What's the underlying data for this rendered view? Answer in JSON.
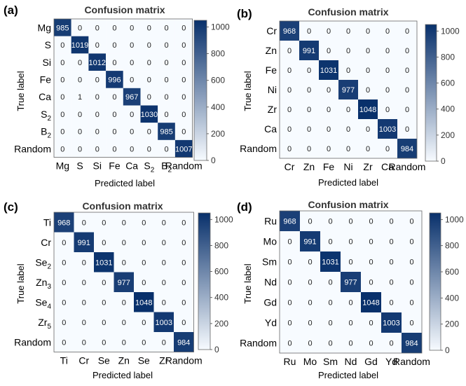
{
  "chart_data": [
    {
      "type": "heatmap",
      "panel_label": "(a)",
      "title": "Confusion matrix",
      "xlabel": "Predicted label",
      "ylabel": "True label",
      "row_labels": [
        "Mg",
        "S",
        "Si",
        "Fe",
        "Ca",
        "S2",
        "B2",
        "Random"
      ],
      "col_labels": [
        "Mg",
        "S",
        "Si",
        "Fe",
        "Ca",
        "S2",
        "B2",
        "Random"
      ],
      "values": [
        [
          985,
          0,
          0,
          0,
          0,
          0,
          0,
          0
        ],
        [
          0,
          1019,
          0,
          0,
          0,
          0,
          0,
          0
        ],
        [
          0,
          0,
          1012,
          0,
          0,
          0,
          0,
          0
        ],
        [
          0,
          0,
          0,
          996,
          0,
          0,
          0,
          0
        ],
        [
          0,
          1,
          0,
          0,
          967,
          0,
          0,
          0
        ],
        [
          0,
          0,
          0,
          0,
          0,
          1030,
          0,
          0
        ],
        [
          0,
          0,
          0,
          0,
          0,
          0,
          985,
          0
        ],
        [
          0,
          0,
          0,
          0,
          0,
          0,
          0,
          1007
        ]
      ],
      "colorbar_ticks": [
        0,
        200,
        400,
        600,
        800,
        1000
      ],
      "color_range": [
        0,
        1050
      ],
      "colormap": [
        "#f7fbff",
        "#08306b"
      ]
    },
    {
      "type": "heatmap",
      "panel_label": "(b)",
      "title": "Confusion matrix",
      "xlabel": "Predicted label",
      "ylabel": "True label",
      "row_labels": [
        "Cr",
        "Zn",
        "Fe",
        "Ni",
        "Zr",
        "Ca",
        "Random"
      ],
      "col_labels": [
        "Cr",
        "Zn",
        "Fe",
        "Ni",
        "Zr",
        "Ca",
        "Random"
      ],
      "values": [
        [
          968,
          0,
          0,
          0,
          0,
          0,
          0
        ],
        [
          0,
          991,
          0,
          0,
          0,
          0,
          0
        ],
        [
          0,
          0,
          1031,
          0,
          0,
          0,
          0
        ],
        [
          0,
          0,
          0,
          977,
          0,
          0,
          0
        ],
        [
          0,
          0,
          0,
          0,
          1048,
          0,
          0
        ],
        [
          0,
          0,
          0,
          0,
          0,
          1003,
          0
        ],
        [
          0,
          0,
          0,
          0,
          0,
          0,
          984
        ]
      ],
      "colorbar_ticks": [
        0,
        200,
        400,
        600,
        800,
        1000
      ],
      "color_range": [
        0,
        1050
      ],
      "colormap": [
        "#f7fbff",
        "#08306b"
      ]
    },
    {
      "type": "heatmap",
      "panel_label": "(c)",
      "title": "Confusion matrix",
      "xlabel": "Predicted label",
      "ylabel": "True label",
      "row_labels": [
        "Ti",
        "Cr",
        "Se2",
        "Zn3",
        "Se4",
        "Zr5",
        "Random"
      ],
      "col_labels": [
        "Ti",
        "Cr",
        "Se",
        "Zn",
        "Se",
        "Zr",
        "Random"
      ],
      "values": [
        [
          968,
          0,
          0,
          0,
          0,
          0,
          0
        ],
        [
          0,
          991,
          0,
          0,
          0,
          0,
          0
        ],
        [
          0,
          0,
          1031,
          0,
          0,
          0,
          0
        ],
        [
          0,
          0,
          0,
          977,
          0,
          0,
          0
        ],
        [
          0,
          0,
          0,
          0,
          1048,
          0,
          0
        ],
        [
          0,
          0,
          0,
          0,
          0,
          1003,
          0
        ],
        [
          0,
          0,
          0,
          0,
          0,
          0,
          984
        ]
      ],
      "colorbar_ticks": [
        0,
        200,
        400,
        600,
        800,
        1000
      ],
      "color_range": [
        0,
        1050
      ],
      "colormap": [
        "#f7fbff",
        "#08306b"
      ]
    },
    {
      "type": "heatmap",
      "panel_label": "(d)",
      "title": "Confusion matrix",
      "xlabel": "Predicted label",
      "ylabel": "True label",
      "row_labels": [
        "Ru",
        "Mo",
        "Sm",
        "Nd",
        "Gd",
        "Yd",
        "Random"
      ],
      "col_labels": [
        "Ru",
        "Mo",
        "Sm",
        "Nd",
        "Gd",
        "Yd",
        "Random"
      ],
      "values": [
        [
          968,
          0,
          0,
          0,
          0,
          0,
          0
        ],
        [
          0,
          991,
          0,
          0,
          0,
          0,
          0
        ],
        [
          0,
          0,
          1031,
          0,
          0,
          0,
          0
        ],
        [
          0,
          0,
          0,
          977,
          0,
          0,
          0
        ],
        [
          0,
          0,
          0,
          0,
          1048,
          0,
          0
        ],
        [
          0,
          0,
          0,
          0,
          0,
          1003,
          0
        ],
        [
          0,
          0,
          0,
          0,
          0,
          0,
          984
        ]
      ],
      "colorbar_ticks": [
        0,
        200,
        400,
        600,
        800,
        1000
      ],
      "color_range": [
        0,
        1050
      ],
      "colormap": [
        "#f7fbff",
        "#08306b"
      ]
    }
  ]
}
